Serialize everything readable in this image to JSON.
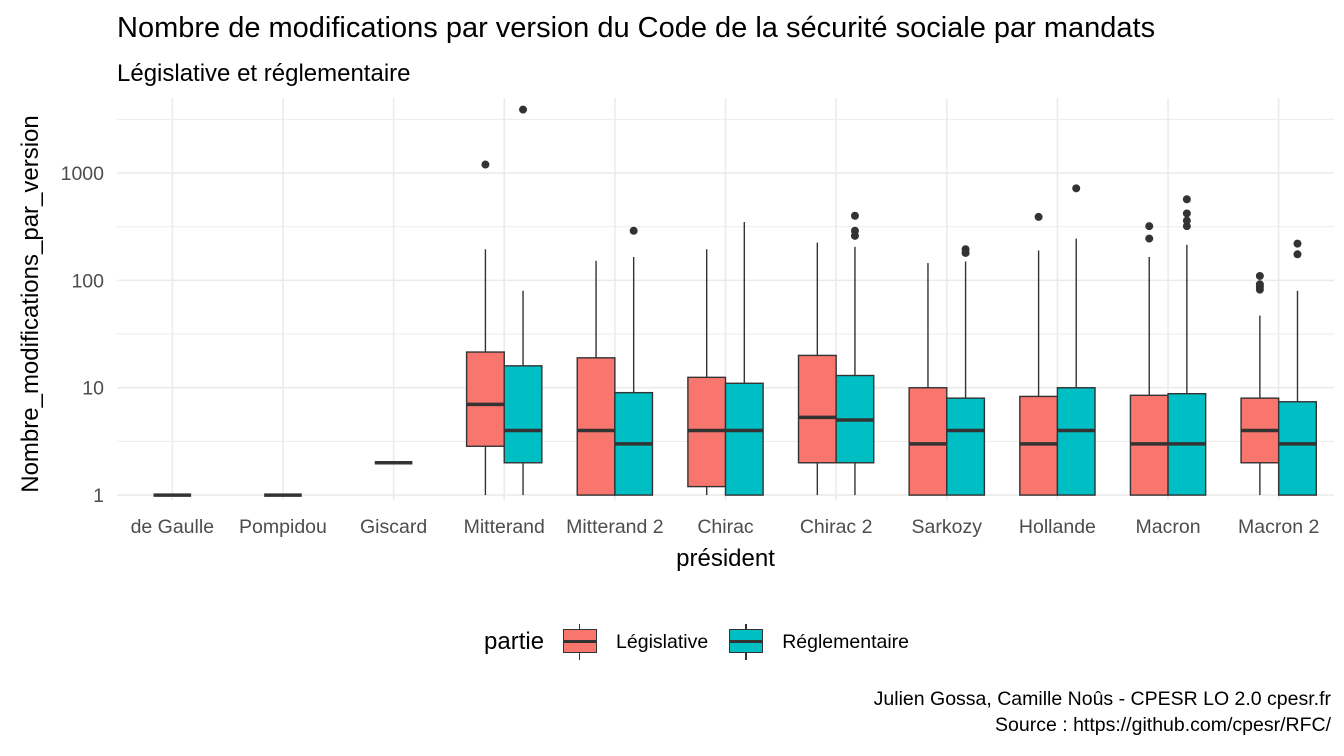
{
  "chart_data": {
    "type": "boxplot",
    "title": "Nombre de modifications par version du Code de la sécurité sociale par mandats",
    "subtitle": "Législative et réglementaire",
    "xlabel": "président",
    "ylabel": "Nombre_modifications_par_version",
    "y_scale": "log10",
    "ylim": [
      0.9,
      5000
    ],
    "y_ticks": [
      {
        "value": 1,
        "label": "1"
      },
      {
        "value": 10,
        "label": "10"
      },
      {
        "value": 100,
        "label": "100"
      },
      {
        "value": 1000,
        "label": "1000"
      }
    ],
    "grid": true,
    "legend_position": "bottom",
    "legend_title": "partie",
    "categories": [
      "de Gaulle",
      "Pompidou",
      "Giscard",
      "Mitterand",
      "Mitterand 2",
      "Chirac",
      "Chirac 2",
      "Sarkozy",
      "Hollande",
      "Macron",
      "Macron 2"
    ],
    "series": [
      {
        "name": "Législative",
        "color": "#F8766D",
        "boxes": [
          {
            "category": "de Gaulle",
            "min": 1,
            "q1": 1,
            "median": 1,
            "q3": 1,
            "max": 1,
            "outliers": []
          },
          {
            "category": "Pompidou",
            "min": 1,
            "q1": 1,
            "median": 1,
            "q3": 1,
            "max": 1,
            "outliers": []
          },
          {
            "category": "Giscard",
            "min": 2,
            "q1": 2,
            "median": 2,
            "q3": 2,
            "max": 2,
            "outliers": []
          },
          {
            "category": "Mitterand",
            "min": 1,
            "q1": 2.85,
            "median": 7,
            "q3": 21.5,
            "max": 195,
            "outliers": [
              1200
            ]
          },
          {
            "category": "Mitterand 2",
            "min": 1,
            "q1": 1,
            "median": 4,
            "q3": 19,
            "max": 152,
            "outliers": []
          },
          {
            "category": "Chirac",
            "min": 1,
            "q1": 1.2,
            "median": 4,
            "q3": 12.5,
            "max": 195,
            "outliers": []
          },
          {
            "category": "Chirac 2",
            "min": 1,
            "q1": 2,
            "median": 5.3,
            "q3": 20,
            "max": 225,
            "outliers": []
          },
          {
            "category": "Sarkozy",
            "min": 1,
            "q1": 1,
            "median": 3,
            "q3": 10,
            "max": 145,
            "outliers": []
          },
          {
            "category": "Hollande",
            "min": 1,
            "q1": 1,
            "median": 3,
            "q3": 8.3,
            "max": 190,
            "outliers": [
              390
            ]
          },
          {
            "category": "Macron",
            "min": 1,
            "q1": 1,
            "median": 3,
            "q3": 8.5,
            "max": 165,
            "outliers": [
              245,
              320
            ]
          },
          {
            "category": "Macron 2",
            "min": 1,
            "q1": 2,
            "median": 4,
            "q3": 8,
            "max": 47,
            "outliers": [
              82,
              87,
              92,
              110
            ]
          }
        ]
      },
      {
        "name": "Réglementaire",
        "color": "#00BFC4",
        "boxes": [
          {
            "category": "Mitterand",
            "min": 1,
            "q1": 2,
            "median": 4,
            "q3": 16,
            "max": 80,
            "outliers": [
              3900
            ]
          },
          {
            "category": "Mitterand 2",
            "min": 1,
            "q1": 1,
            "median": 3,
            "q3": 9,
            "max": 165,
            "outliers": [
              290
            ]
          },
          {
            "category": "Chirac",
            "min": 1,
            "q1": 1,
            "median": 4,
            "q3": 11,
            "max": 350,
            "outliers": []
          },
          {
            "category": "Chirac 2",
            "min": 1,
            "q1": 2,
            "median": 5,
            "q3": 13,
            "max": 205,
            "outliers": [
              260,
              290,
              400
            ]
          },
          {
            "category": "Sarkozy",
            "min": 1,
            "q1": 1,
            "median": 4,
            "q3": 8,
            "max": 150,
            "outliers": [
              180,
              195
            ]
          },
          {
            "category": "Hollande",
            "min": 1,
            "q1": 1,
            "median": 4,
            "q3": 10,
            "max": 245,
            "outliers": [
              720
            ]
          },
          {
            "category": "Macron",
            "min": 1,
            "q1": 1,
            "median": 3,
            "q3": 8.8,
            "max": 215,
            "outliers": [
              320,
              360,
              420,
              570
            ]
          },
          {
            "category": "Macron 2",
            "min": 1,
            "q1": 1,
            "median": 3,
            "q3": 7.4,
            "max": 80,
            "outliers": [
              175,
              220
            ]
          }
        ]
      }
    ],
    "caption": [
      "Julien Gossa, Camille Noûs - CPESR LO 2.0 cpesr.fr",
      "Source : https://github.com/cpesr/RFC/"
    ]
  }
}
